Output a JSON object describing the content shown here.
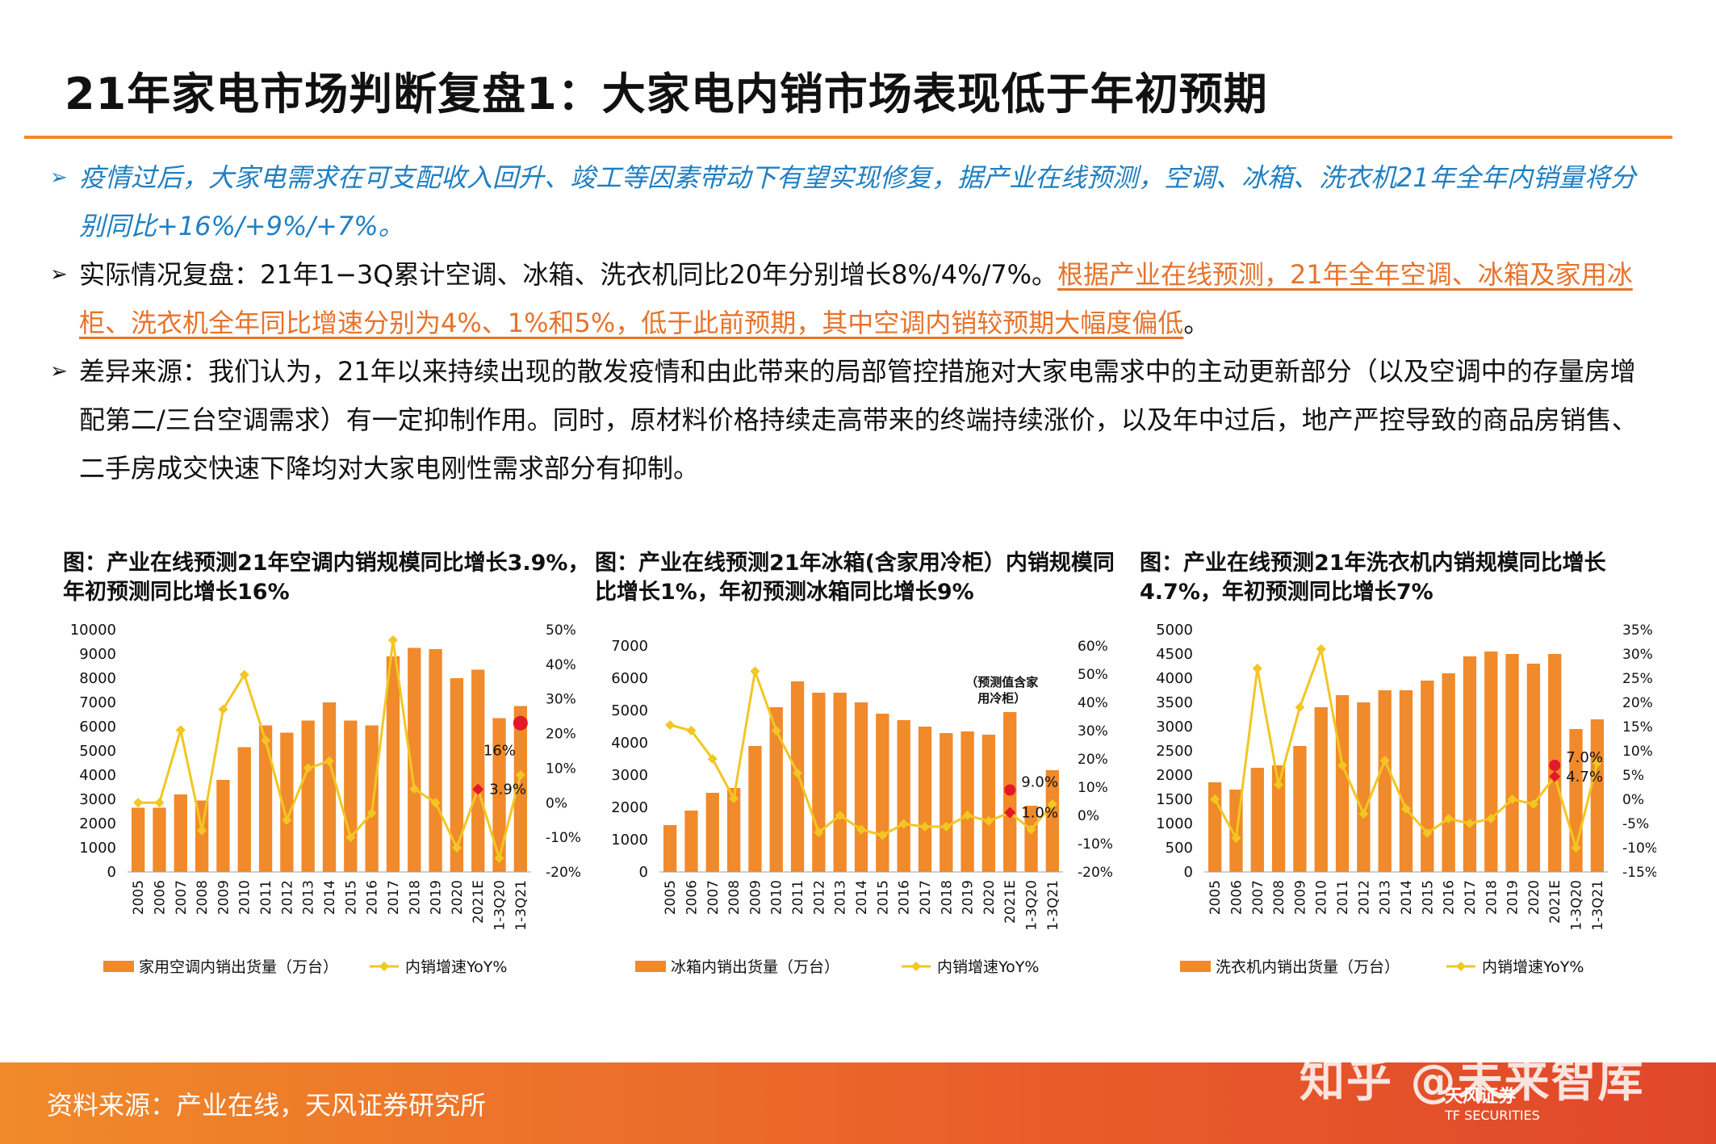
{
  "title": "21年家电市场判断复盘1：大家电内销市场表现低于年初预期",
  "bullets": {
    "b1": "疫情过后，大家电需求在可支配收入回升、竣工等因素带动下有望实现修复，据产业在线预测，空调、冰箱、洗衣机21年全年内销量将分别同比+16%/+9%/+7%。",
    "b2_pre": "实际情况复盘：21年1−3Q累计空调、冰箱、洗衣机同比20年分别增长8%/4%/7%。",
    "b2_hl": "根据产业在线预测，21年全年空调、冰箱及家用冰柜、洗衣机全年同比增速分别为4%、1%和5%，低于此前预期，其中空调内销较预期大幅度偏低",
    "b2_post": "。",
    "b3": "差异来源：我们认为，21年以来持续出现的散发疫情和由此带来的局部管控措施对大家电需求中的主动更新部分（以及空调中的存量房增配第二/三台空调需求）有一定抑制作用。同时，原材料价格持续走高带来的终端持续涨价，以及年中过后，地产严控导致的商品房销售、二手房成交快速下降均对大家电刚性需求部分有抑制。"
  },
  "colors": {
    "bar": "#f08a2a",
    "line": "#f2c623",
    "accent": "#e6732b",
    "blue": "#1f7fc2",
    "marker": "#e5172a"
  },
  "chart_data": [
    {
      "type": "bar",
      "caption": "图：产业在线预测21年空调内销规模同比增长3.9%，年初预测同比增长16%",
      "categories": [
        "2005",
        "2006",
        "2007",
        "2008",
        "2009",
        "2010",
        "2011",
        "2012",
        "2013",
        "2014",
        "2015",
        "2016",
        "2017",
        "2018",
        "2019",
        "2020",
        "2021E",
        "1-3Q20",
        "1-3Q21"
      ],
      "series": [
        {
          "name": "家用空调内销出货量（万台）",
          "axis": "left",
          "values": [
            2650,
            2650,
            3200,
            2950,
            3800,
            5150,
            6050,
            5750,
            6250,
            7000,
            6250,
            6050,
            8900,
            9250,
            9200,
            8000,
            8350,
            6350,
            6850
          ]
        },
        {
          "name": "内销增速YoY%",
          "axis": "right",
          "type": "line",
          "values": [
            0,
            0,
            21,
            -8,
            27,
            37,
            18,
            -5,
            10,
            12,
            -10,
            -3,
            47,
            4,
            0,
            -13,
            4,
            -16,
            8
          ]
        }
      ],
      "ylim_left": [
        0,
        10000
      ],
      "yticks_left": [
        "0",
        "1000",
        "2000",
        "3000",
        "4000",
        "5000",
        "6000",
        "7000",
        "8000",
        "9000",
        "10000"
      ],
      "ylim_right": [
        -20,
        50
      ],
      "yticks_right": [
        "-20%",
        "-10%",
        "0%",
        "10%",
        "20%",
        "30%",
        "40%",
        "50%"
      ],
      "annotations": [
        {
          "label": "16%",
          "category": "1-3Q21",
          "value": 23,
          "marker": "large"
        },
        {
          "label": "3.9%",
          "category": "2021E",
          "value": 3.9,
          "marker": "diamond"
        }
      ]
    },
    {
      "type": "bar",
      "caption": "图：产业在线预测21年冰箱(含家用冷柜）内销规模同比增长1%，年初预测冰箱同比增长9%",
      "categories": [
        "2005",
        "2006",
        "2007",
        "2008",
        "2009",
        "2010",
        "2011",
        "2012",
        "2013",
        "2014",
        "2015",
        "2016",
        "2017",
        "2018",
        "2019",
        "2020",
        "2021E",
        "1-3Q20",
        "1-3Q21"
      ],
      "series": [
        {
          "name": "冰箱内销出货量（万台）",
          "axis": "left",
          "values": [
            1450,
            1900,
            2450,
            2600,
            3900,
            5100,
            5900,
            5550,
            5550,
            5250,
            4900,
            4700,
            4500,
            4300,
            4350,
            4250,
            4950,
            2050,
            3150
          ]
        },
        {
          "name": "内销增速YoY%",
          "axis": "right",
          "type": "line",
          "values": [
            32,
            30,
            20,
            6,
            51,
            30,
            15,
            -6,
            0,
            -5,
            -7,
            -3,
            -4,
            -4,
            0,
            -2,
            1,
            -5,
            4
          ]
        }
      ],
      "ylim_left": [
        0,
        7000
      ],
      "yticks_left": [
        "0",
        "1000",
        "2000",
        "3000",
        "4000",
        "5000",
        "6000",
        "7000"
      ],
      "ylim_right": [
        -20,
        60
      ],
      "yticks_right": [
        "-20%",
        "-10%",
        "0%",
        "10%",
        "20%",
        "30%",
        "40%",
        "50%",
        "60%"
      ],
      "annotations": [
        {
          "label": "（预测值含家用冷柜）",
          "category": "2021E"
        },
        {
          "label": "9.0%",
          "category": "2021E",
          "value": 9,
          "marker": "circle"
        },
        {
          "label": "1.0%",
          "category": "2021E",
          "value": 1,
          "marker": "diamond"
        }
      ]
    },
    {
      "type": "bar",
      "caption": "图：产业在线预测21年洗衣机内销规模同比增长4.7%，年初预测同比增长7%",
      "categories": [
        "2005",
        "2006",
        "2007",
        "2008",
        "2009",
        "2010",
        "2011",
        "2012",
        "2013",
        "2014",
        "2015",
        "2016",
        "2017",
        "2018",
        "2019",
        "2020",
        "2021E",
        "1-3Q20",
        "1-3Q21"
      ],
      "series": [
        {
          "name": "洗衣机内销出货量（万台）",
          "axis": "left",
          "values": [
            1850,
            1700,
            2150,
            2200,
            2600,
            3400,
            3650,
            3500,
            3750,
            3750,
            3950,
            4100,
            4450,
            4550,
            4500,
            4300,
            4500,
            2950,
            3150
          ]
        },
        {
          "name": "内销增速YoY%",
          "axis": "right",
          "type": "line",
          "values": [
            0,
            -8,
            27,
            3,
            19,
            31,
            7,
            -3,
            8,
            -2,
            -7,
            -4,
            -5,
            -4,
            0,
            -1,
            4.7,
            -10,
            7.5
          ]
        }
      ],
      "ylim_left": [
        0,
        5000
      ],
      "yticks_left": [
        "0",
        "500",
        "1000",
        "1500",
        "2000",
        "2500",
        "3000",
        "3500",
        "4000",
        "4500",
        "5000"
      ],
      "ylim_right": [
        -15,
        35
      ],
      "yticks_right": [
        "-15%",
        "-10%",
        "-5%",
        "0%",
        "5%",
        "10%",
        "15%",
        "20%",
        "25%",
        "30%",
        "35%"
      ],
      "annotations": [
        {
          "label": "7.0%",
          "category": "2021E",
          "value": 7,
          "marker": "circle"
        },
        {
          "label": "4.7%",
          "category": "2021E",
          "value": 4.7,
          "marker": "diamond"
        }
      ]
    }
  ],
  "footer": {
    "source": "资料来源：产业在线，天风证券研究所",
    "watermark": "知乎 @未来智库",
    "logo_cn": "天风证券",
    "logo_en": "TF SECURITIES"
  }
}
